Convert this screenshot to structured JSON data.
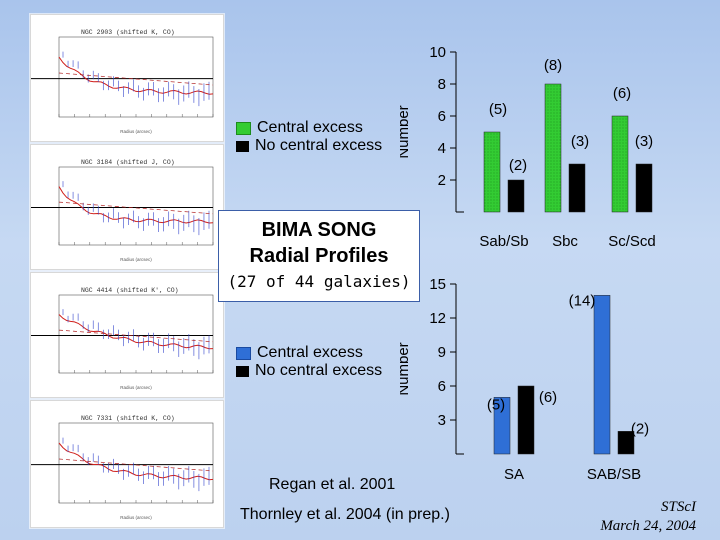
{
  "panels": [
    {
      "label": "NGC 2903 (shifted K, CO)"
    },
    {
      "label": "NGC 3184 (shifted J, CO)"
    },
    {
      "label": "NGC 4414 (shifted K', CO)"
    },
    {
      "label": "NGC 7331 (shifted K, CO)"
    }
  ],
  "title_box": {
    "line1": "BIMA SONG",
    "line2": "Radial Profiles",
    "line3": "(27 of 44 galaxies)"
  },
  "legend_top": {
    "item1": "Central excess",
    "item2": "No central excess",
    "color1": "#33cc33",
    "color2": "#000000"
  },
  "legend_bottom": {
    "item1": "Central excess",
    "item2": "No central excess",
    "color1": "#2f6fd6",
    "color2": "#000000"
  },
  "credits": {
    "line1": "Regan et al. 2001",
    "line2": "Thornley et al. 2004 (in prep.)"
  },
  "footer": {
    "org": "STScI",
    "date": "March 24, 2004"
  },
  "chart_data": [
    {
      "type": "bar",
      "categories": [
        "Sab/Sb",
        "Sbc",
        "Sc/Scd"
      ],
      "series": [
        {
          "name": "Central excess",
          "values": [
            5,
            8,
            6
          ],
          "color": "#33cc33"
        },
        {
          "name": "No central excess",
          "values": [
            2,
            3,
            3
          ],
          "color": "#000000"
        }
      ],
      "data_labels": [
        "(5)",
        "(2)",
        "(8)",
        "(3)",
        "(6)",
        "(3)"
      ],
      "ylabel": "Number",
      "ylim": [
        0,
        10
      ],
      "yticks": [
        2,
        4,
        6,
        8,
        10
      ],
      "ytick_labels": [
        "2",
        "4",
        "6",
        "8",
        "10"
      ]
    },
    {
      "type": "bar",
      "categories": [
        "SA",
        "SAB/SB"
      ],
      "series": [
        {
          "name": "Central excess",
          "values": [
            5,
            14
          ],
          "color": "#2f6fd6"
        },
        {
          "name": "No central excess",
          "values": [
            6,
            2
          ],
          "color": "#000000"
        }
      ],
      "data_labels": [
        "(5)",
        "(6)",
        "(14)",
        "(2)"
      ],
      "ylabel": "Number",
      "ylim": [
        0,
        15
      ],
      "yticks": [
        3,
        6,
        9,
        12,
        15
      ],
      "ytick_labels": [
        "3",
        "6",
        "9",
        "12",
        "15"
      ]
    }
  ]
}
